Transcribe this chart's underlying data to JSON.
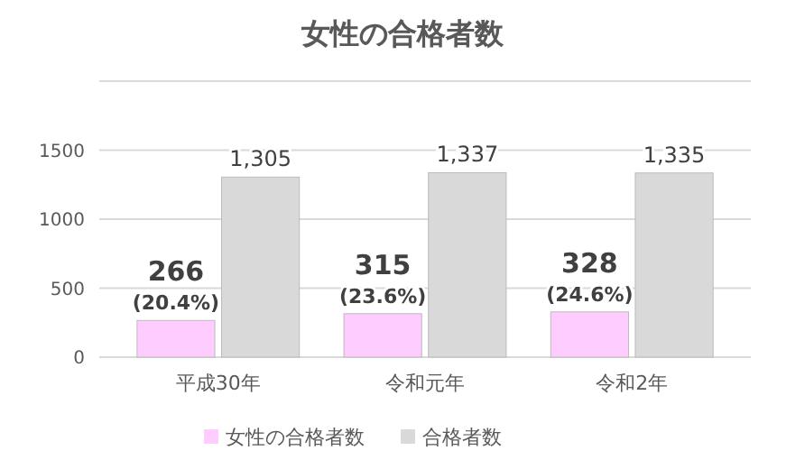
{
  "chart_data": {
    "type": "bar",
    "title": "女性の合格者数",
    "categories": [
      "平成30年",
      "令和元年",
      "令和2年"
    ],
    "series": [
      {
        "name": "女性の合格者数",
        "color": "#ffccff",
        "values": [
          266,
          315,
          328
        ],
        "value_labels": [
          "266\n(20.4%)",
          "315\n(23.6%)",
          "328\n(24.6%)"
        ]
      },
      {
        "name": "合格者数",
        "color": "#d9d9d9",
        "values": [
          1305,
          1337,
          1335
        ],
        "value_labels": [
          "1,305",
          "1,337",
          "1,335"
        ]
      }
    ],
    "ylim": [
      0,
      2000
    ],
    "yticks": [
      0,
      500,
      1000,
      1500,
      {
        "value": 2000,
        "label": null
      }
    ],
    "grid": "y",
    "legend": "bottom"
  }
}
